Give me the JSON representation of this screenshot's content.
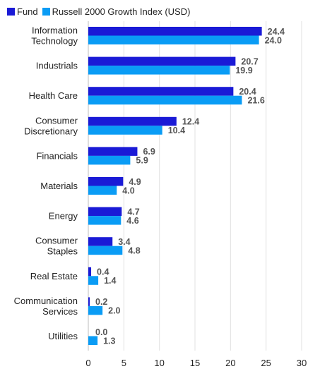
{
  "chart_data": {
    "type": "bar",
    "orientation": "horizontal",
    "categories": [
      [
        "Information",
        "Technology"
      ],
      [
        "Industrials"
      ],
      [
        "Health Care"
      ],
      [
        "Consumer",
        "Discretionary"
      ],
      [
        "Financials"
      ],
      [
        "Materials"
      ],
      [
        "Energy"
      ],
      [
        "Consumer",
        "Staples"
      ],
      [
        "Real Estate"
      ],
      [
        "Communication",
        "Services"
      ],
      [
        "Utilities"
      ]
    ],
    "series": [
      {
        "name": "Fund",
        "color": "#1a1ad6",
        "values": [
          24.4,
          20.7,
          20.4,
          12.4,
          6.9,
          4.9,
          4.7,
          3.4,
          0.4,
          0.2,
          0.0
        ],
        "labels": [
          "24.4",
          "20.7",
          "20.4",
          "12.4",
          "6.9",
          "4.9",
          "4.7",
          "3.4",
          "0.4",
          "0.2",
          "0.0"
        ]
      },
      {
        "name": "Russell 2000 Growth Index (USD)",
        "color": "#0a9cf5",
        "values": [
          24.0,
          19.9,
          21.6,
          10.4,
          5.9,
          4.0,
          4.6,
          4.8,
          1.4,
          2.0,
          1.3
        ],
        "labels": [
          "24.0",
          "19.9",
          "21.6",
          "10.4",
          "5.9",
          "4.0",
          "4.6",
          "4.8",
          "1.4",
          "2.0",
          "1.3"
        ]
      }
    ],
    "xlim": [
      0,
      30
    ],
    "xticks": [
      "0",
      "5",
      "10",
      "15",
      "20",
      "25",
      "30"
    ],
    "grid": true,
    "legend_position": "top-left"
  }
}
